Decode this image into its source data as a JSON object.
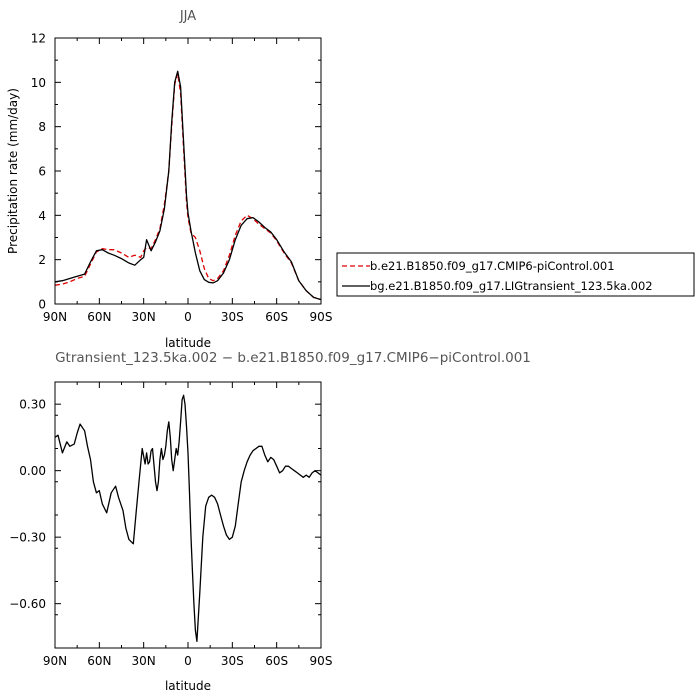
{
  "chart_data": [
    {
      "type": "line",
      "title": "JJA",
      "xlabel": "latitude",
      "ylabel": "Precipitation rate (mm/day)",
      "xlim": [
        90,
        -90
      ],
      "ylim": [
        0,
        12
      ],
      "x_ticks": [
        90,
        60,
        30,
        0,
        -30,
        -60,
        -90
      ],
      "x_tick_labels": [
        "90N",
        "60N",
        "30N",
        "0",
        "30S",
        "60S",
        "90S"
      ],
      "y_ticks": [
        0,
        2,
        4,
        6,
        8,
        10,
        12
      ],
      "y_tick_labels": [
        "0",
        "2",
        "4",
        "6",
        "8",
        "10",
        "12"
      ],
      "grid": false,
      "legend_position": "right",
      "series": [
        {
          "name": "b.e21.B1850.f09_g17.CMIP6-piControl.001",
          "color": "#dd0000",
          "dash": "dashed",
          "x": [
            90,
            85,
            80,
            75,
            70,
            66,
            62,
            58,
            54,
            50,
            45,
            40,
            36,
            32,
            30,
            28,
            25,
            22,
            19,
            16,
            13,
            11,
            9,
            7,
            5,
            3,
            1,
            0,
            -2,
            -5,
            -8,
            -11,
            -14,
            -17,
            -20,
            -24,
            -28,
            -32,
            -36,
            -40,
            -44,
            -48,
            -52,
            -56,
            -60,
            -65,
            -70,
            -75,
            -80,
            -85,
            -90
          ],
          "y": [
            0.85,
            0.9,
            1.0,
            1.15,
            1.25,
            1.8,
            2.35,
            2.5,
            2.45,
            2.45,
            2.3,
            2.1,
            2.2,
            2.1,
            2.4,
            2.55,
            2.5,
            2.9,
            3.4,
            4.5,
            6.0,
            8.0,
            9.9,
            10.4,
            9.5,
            7.0,
            4.6,
            3.9,
            3.2,
            3.0,
            2.4,
            1.6,
            1.15,
            1.05,
            1.15,
            1.5,
            2.2,
            3.1,
            3.75,
            4.0,
            3.85,
            3.6,
            3.4,
            3.2,
            2.85,
            2.3,
            1.85,
            1.05,
            0.6,
            0.3,
            0.2
          ]
        },
        {
          "name": "bg.e21.B1850.f09_g17.LIGtransient_123.5ka.002",
          "color": "#000000",
          "dash": "solid",
          "x": [
            90,
            85,
            80,
            75,
            70,
            66,
            62,
            58,
            54,
            50,
            45,
            40,
            36,
            32,
            30,
            28,
            25,
            22,
            19,
            16,
            13,
            11,
            9,
            7,
            5,
            3,
            1,
            0,
            -2,
            -5,
            -8,
            -11,
            -14,
            -17,
            -20,
            -24,
            -28,
            -32,
            -36,
            -40,
            -44,
            -48,
            -52,
            -56,
            -60,
            -65,
            -70,
            -75,
            -80,
            -85,
            -90
          ],
          "y": [
            1.0,
            1.05,
            1.15,
            1.25,
            1.35,
            1.9,
            2.4,
            2.45,
            2.3,
            2.2,
            2.05,
            1.85,
            1.75,
            2.0,
            2.1,
            2.9,
            2.4,
            2.8,
            3.3,
            4.3,
            6.0,
            8.2,
            10.0,
            10.5,
            9.8,
            7.3,
            4.9,
            4.1,
            3.3,
            2.3,
            1.5,
            1.1,
            0.98,
            0.95,
            1.05,
            1.4,
            2.0,
            2.9,
            3.55,
            3.85,
            3.9,
            3.7,
            3.45,
            3.25,
            2.9,
            2.35,
            1.9,
            1.05,
            0.6,
            0.3,
            0.2
          ]
        }
      ]
    },
    {
      "type": "line",
      "title": "Gtransient_123.5ka.002 − b.e21.B1850.f09_g17.CMIP6−piControl.001",
      "xlabel": "latitude",
      "ylabel": "",
      "xlim": [
        90,
        -90
      ],
      "ylim": [
        -0.8,
        0.4
      ],
      "x_ticks": [
        90,
        60,
        30,
        0,
        -30,
        -60,
        -90
      ],
      "x_tick_labels": [
        "90N",
        "60N",
        "30N",
        "0",
        "30S",
        "60S",
        "90S"
      ],
      "y_ticks": [
        0.3,
        0.0,
        -0.3,
        -0.6
      ],
      "y_tick_labels": [
        "0.30",
        "0.00",
        "−0.30",
        "−0.60"
      ],
      "grid": false,
      "series": [
        {
          "name": "",
          "color": "#000000",
          "dash": "solid",
          "x": [
            90,
            88,
            85,
            82,
            80,
            77,
            75,
            73,
            70,
            68,
            66,
            64,
            62,
            60,
            58,
            55,
            52,
            49,
            47,
            44,
            42,
            40,
            37,
            35,
            33,
            31,
            29,
            28,
            27,
            26,
            25,
            24,
            22,
            21,
            20,
            19,
            18,
            17,
            16,
            15,
            14,
            13,
            12,
            11,
            10,
            9,
            8,
            7,
            6,
            5,
            4,
            3,
            2,
            1,
            0,
            -1,
            -2,
            -3,
            -4,
            -5,
            -6,
            -8,
            -10,
            -12,
            -14,
            -16,
            -18,
            -20,
            -22,
            -24,
            -26,
            -28,
            -30,
            -32,
            -34,
            -36,
            -38,
            -40,
            -42,
            -44,
            -46,
            -48,
            -50,
            -52,
            -54,
            -56,
            -58,
            -60,
            -62,
            -64,
            -66,
            -68,
            -70,
            -72,
            -74,
            -76,
            -78,
            -80,
            -82,
            -84,
            -86,
            -88,
            -90
          ],
          "y": [
            0.15,
            0.16,
            0.08,
            0.13,
            0.11,
            0.12,
            0.17,
            0.21,
            0.18,
            0.11,
            0.05,
            -0.05,
            -0.1,
            -0.09,
            -0.15,
            -0.19,
            -0.1,
            -0.07,
            -0.12,
            -0.18,
            -0.26,
            -0.31,
            -0.33,
            -0.18,
            -0.04,
            0.1,
            0.03,
            0.08,
            0.03,
            0.04,
            0.09,
            0.1,
            -0.05,
            -0.09,
            -0.05,
            0.05,
            0.1,
            0.05,
            0.07,
            0.11,
            0.18,
            0.22,
            0.15,
            0.05,
            0.0,
            0.05,
            0.1,
            0.07,
            0.13,
            0.22,
            0.32,
            0.34,
            0.3,
            0.2,
            0.08,
            -0.1,
            -0.3,
            -0.45,
            -0.6,
            -0.72,
            -0.77,
            -0.55,
            -0.3,
            -0.16,
            -0.12,
            -0.11,
            -0.12,
            -0.15,
            -0.2,
            -0.25,
            -0.29,
            -0.31,
            -0.3,
            -0.25,
            -0.15,
            -0.05,
            0.0,
            0.04,
            0.07,
            0.09,
            0.1,
            0.11,
            0.11,
            0.07,
            0.04,
            0.06,
            0.05,
            0.02,
            -0.01,
            0.0,
            0.02,
            0.02,
            0.01,
            0.0,
            -0.01,
            -0.02,
            -0.03,
            -0.02,
            -0.03,
            -0.01,
            0.0,
            -0.01,
            -0.02
          ]
        }
      ]
    }
  ]
}
